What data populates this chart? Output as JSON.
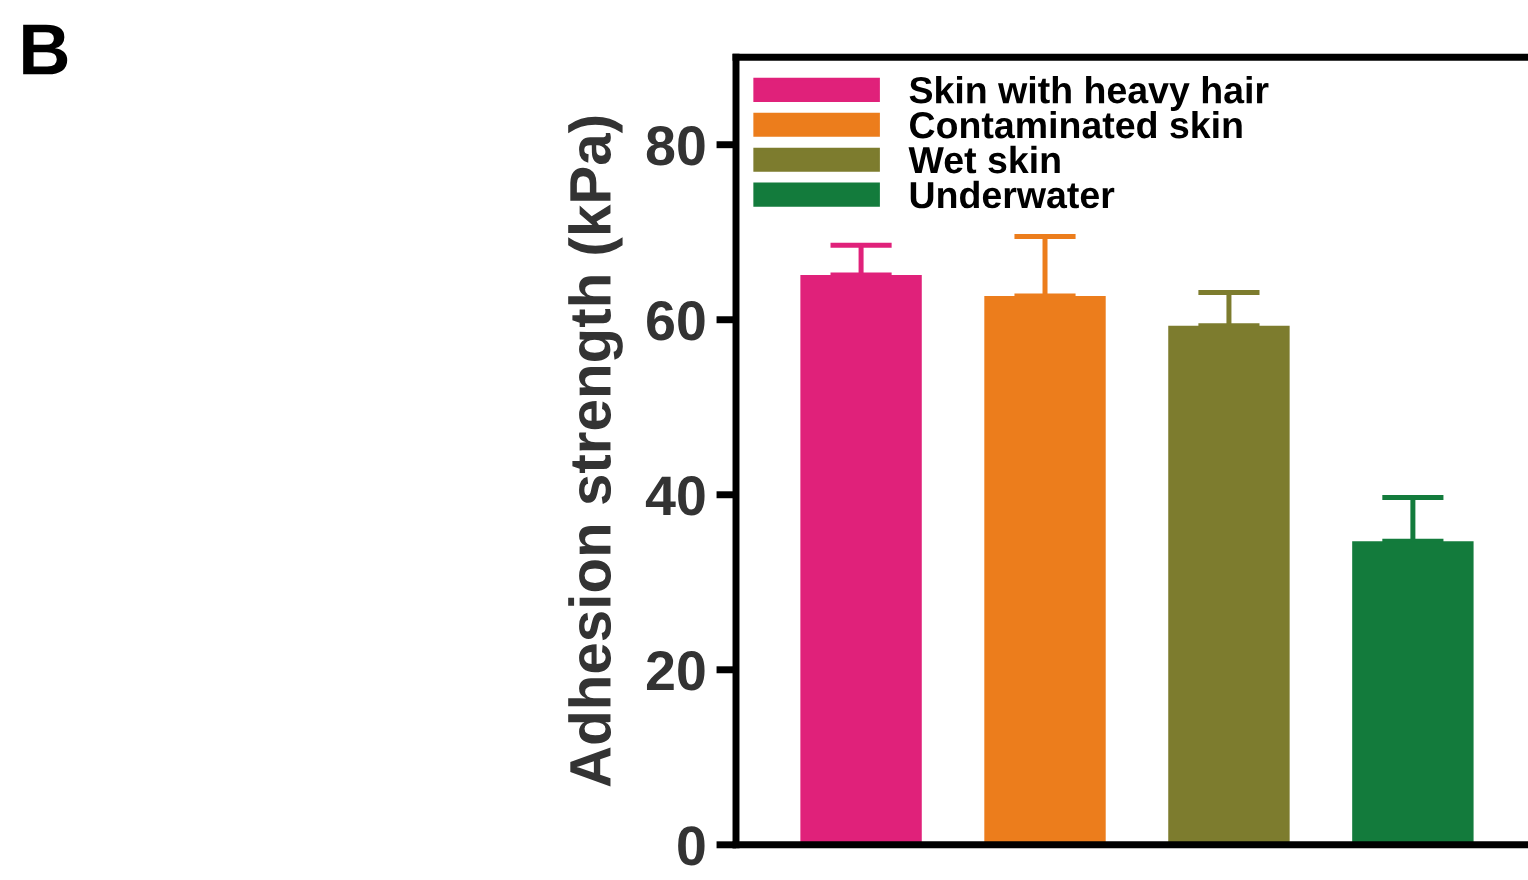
{
  "chart_data": {
    "type": "bar",
    "title": "B",
    "ylabel": "Adhesion strength (kPa)",
    "categories": [
      null,
      null,
      null,
      null
    ],
    "series": [
      {
        "name": "Skin with heavy hair",
        "color": "#e0217a",
        "values": [
          65.1,
          null,
          null,
          null
        ],
        "errors": [
          [
            65.1,
            68.5
          ],
          null,
          null,
          null
        ]
      },
      {
        "name": "Contaminated skin",
        "color": "#ec7d1c",
        "values": [
          null,
          62.7,
          null,
          null
        ],
        "errors": [
          null,
          [
            62.7,
            69.5
          ],
          null,
          null
        ]
      },
      {
        "name": "Wet skin",
        "color": "#7d7c2e",
        "values": [
          null,
          null,
          59.3,
          null
        ],
        "errors": [
          null,
          null,
          [
            59.3,
            63.1
          ],
          null
        ]
      },
      {
        "name": "Underwater",
        "color": "#137b3c",
        "values": [
          null,
          null,
          null,
          34.7
        ],
        "errors": [
          null,
          null,
          null,
          [
            34.7,
            39.7
          ]
        ]
      }
    ],
    "ylim": [
      0,
      90
    ],
    "yticks": [
      0,
      20,
      40,
      60,
      80
    ],
    "grid": false,
    "legend": "top left"
  }
}
